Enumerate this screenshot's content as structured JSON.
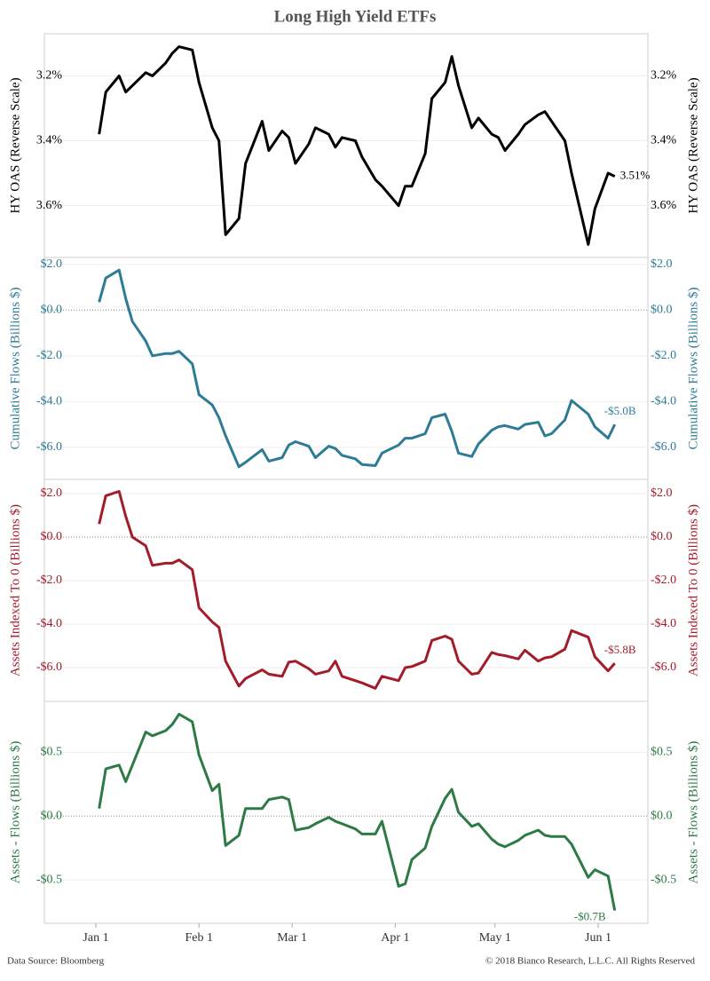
{
  "title": "Long High Yield ETFs",
  "footer": {
    "source": "Data Source: Bloomberg",
    "copyright": "© 2018 Bianco Research, L.L.C. All Rights Reserved"
  },
  "chart_data": [
    {
      "type": "line",
      "ylabel": "HY OAS (Reverse Scale)",
      "color": "#000000",
      "reverse": true,
      "grid": true,
      "ylim": [
        3.07,
        3.76
      ],
      "yticks": [
        {
          "value": 3.2,
          "label": "3.2%"
        },
        {
          "value": 3.4,
          "label": "3.4%"
        },
        {
          "value": 3.6,
          "label": "3.6%"
        }
      ],
      "end_label": "3.51%",
      "x": [
        "Jan 2",
        "Jan 4",
        "Jan 8",
        "Jan 10",
        "Jan 12",
        "Jan 16",
        "Jan 18",
        "Jan 22",
        "Jan 24",
        "Jan 26",
        "Jan 30",
        "Feb 1",
        "Feb 5",
        "Feb 7",
        "Feb 9",
        "Feb 13",
        "Feb 15",
        "Feb 20",
        "Feb 22",
        "Feb 26",
        "Feb 28",
        "Mar 2",
        "Mar 6",
        "Mar 8",
        "Mar 12",
        "Mar 14",
        "Mar 16",
        "Mar 20",
        "Mar 22",
        "Mar 26",
        "Mar 28",
        "Apr 2",
        "Apr 4",
        "Apr 6",
        "Apr 10",
        "Apr 12",
        "Apr 16",
        "Apr 18",
        "Apr 20",
        "Apr 24",
        "Apr 26",
        "Apr 30",
        "May 2",
        "May 4",
        "May 8",
        "May 10",
        "May 14",
        "May 16",
        "May 18",
        "May 22",
        "May 24",
        "May 29",
        "May 31",
        "Jun 4",
        "Jun 6"
      ],
      "values": [
        3.38,
        3.25,
        3.2,
        3.25,
        3.23,
        3.19,
        3.2,
        3.16,
        3.13,
        3.11,
        3.12,
        3.22,
        3.36,
        3.4,
        3.69,
        3.64,
        3.47,
        3.34,
        3.43,
        3.37,
        3.39,
        3.47,
        3.41,
        3.36,
        3.38,
        3.42,
        3.39,
        3.4,
        3.45,
        3.52,
        3.54,
        3.6,
        3.54,
        3.54,
        3.44,
        3.27,
        3.22,
        3.14,
        3.23,
        3.36,
        3.33,
        3.38,
        3.39,
        3.43,
        3.38,
        3.35,
        3.32,
        3.31,
        3.34,
        3.4,
        3.5,
        3.72,
        3.61,
        3.5,
        3.51
      ]
    },
    {
      "type": "line",
      "ylabel": "Cumulative Flows (Billions $)",
      "color": "#2e7b96",
      "grid": true,
      "ylim": [
        -7.4,
        2.3
      ],
      "yticks": [
        {
          "value": 2,
          "label": "$2.0"
        },
        {
          "value": 0,
          "label": "$0.0"
        },
        {
          "value": -2,
          "label": "-$2.0"
        },
        {
          "value": -4,
          "label": "-$4.0"
        },
        {
          "value": -6,
          "label": "-$6.0"
        }
      ],
      "end_label": "-$5.0B",
      "x": [
        "Jan 2",
        "Jan 4",
        "Jan 8",
        "Jan 10",
        "Jan 12",
        "Jan 16",
        "Jan 18",
        "Jan 22",
        "Jan 24",
        "Jan 26",
        "Jan 30",
        "Feb 1",
        "Feb 5",
        "Feb 7",
        "Feb 9",
        "Feb 13",
        "Feb 15",
        "Feb 20",
        "Feb 22",
        "Feb 26",
        "Feb 28",
        "Mar 2",
        "Mar 6",
        "Mar 8",
        "Mar 12",
        "Mar 14",
        "Mar 16",
        "Mar 20",
        "Mar 22",
        "Mar 26",
        "Mar 28",
        "Apr 2",
        "Apr 4",
        "Apr 6",
        "Apr 10",
        "Apr 12",
        "Apr 16",
        "Apr 18",
        "Apr 20",
        "Apr 24",
        "Apr 26",
        "Apr 30",
        "May 2",
        "May 4",
        "May 8",
        "May 10",
        "May 14",
        "May 16",
        "May 18",
        "May 22",
        "May 24",
        "May 29",
        "May 31",
        "Jun 4",
        "Jun 6"
      ],
      "values": [
        0.35,
        1.4,
        1.75,
        0.5,
        -0.5,
        -1.35,
        -2.0,
        -1.9,
        -1.9,
        -1.8,
        -2.35,
        -3.7,
        -4.15,
        -4.7,
        -5.5,
        -6.85,
        -6.65,
        -6.1,
        -6.6,
        -6.45,
        -5.9,
        -5.75,
        -5.95,
        -6.45,
        -5.95,
        -6.05,
        -6.35,
        -6.5,
        -6.75,
        -6.8,
        -6.25,
        -5.9,
        -5.6,
        -5.6,
        -5.4,
        -4.7,
        -4.55,
        -5.3,
        -6.25,
        -6.4,
        -5.85,
        -5.25,
        -5.1,
        -5.05,
        -5.2,
        -5.0,
        -4.9,
        -5.5,
        -5.4,
        -4.8,
        -3.95,
        -4.55,
        -5.1,
        -5.6,
        -5.0
      ]
    },
    {
      "type": "line",
      "ylabel": "Assets Indexed To 0 (Billions $)",
      "color": "#a31c2a",
      "grid": true,
      "ylim": [
        -7.55,
        2.65
      ],
      "yticks": [
        {
          "value": 2,
          "label": "$2.0"
        },
        {
          "value": 0,
          "label": "$0.0"
        },
        {
          "value": -2,
          "label": "-$2.0"
        },
        {
          "value": -4,
          "label": "-$4.0"
        },
        {
          "value": -6,
          "label": "-$6.0"
        }
      ],
      "end_label": "-$5.8B",
      "x": [
        "Jan 2",
        "Jan 4",
        "Jan 8",
        "Jan 10",
        "Jan 12",
        "Jan 16",
        "Jan 18",
        "Jan 22",
        "Jan 24",
        "Jan 26",
        "Jan 30",
        "Feb 1",
        "Feb 5",
        "Feb 7",
        "Feb 9",
        "Feb 13",
        "Feb 15",
        "Feb 20",
        "Feb 22",
        "Feb 26",
        "Feb 28",
        "Mar 2",
        "Mar 6",
        "Mar 8",
        "Mar 12",
        "Mar 14",
        "Mar 16",
        "Mar 20",
        "Mar 22",
        "Mar 26",
        "Mar 28",
        "Apr 2",
        "Apr 4",
        "Apr 6",
        "Apr 10",
        "Apr 12",
        "Apr 16",
        "Apr 18",
        "Apr 20",
        "Apr 24",
        "Apr 26",
        "Apr 30",
        "May 2",
        "May 4",
        "May 8",
        "May 10",
        "May 14",
        "May 16",
        "May 18",
        "May 22",
        "May 24",
        "May 29",
        "May 31",
        "Jun 4",
        "Jun 6"
      ],
      "values": [
        0.6,
        1.9,
        2.1,
        0.95,
        0.0,
        -0.4,
        -1.3,
        -1.2,
        -1.2,
        -1.05,
        -1.5,
        -3.25,
        -3.9,
        -4.15,
        -5.7,
        -6.85,
        -6.5,
        -6.1,
        -6.3,
        -6.4,
        -5.75,
        -5.7,
        -6.05,
        -6.3,
        -6.15,
        -5.7,
        -6.4,
        -6.6,
        -6.7,
        -6.95,
        -6.4,
        -6.6,
        -6.0,
        -5.95,
        -5.7,
        -4.75,
        -4.55,
        -4.7,
        -5.7,
        -6.3,
        -6.25,
        -5.3,
        -5.4,
        -5.45,
        -5.6,
        -5.2,
        -5.7,
        -5.55,
        -5.5,
        -5.15,
        -4.3,
        -4.6,
        -5.5,
        -6.15,
        -5.8
      ]
    },
    {
      "type": "line",
      "ylabel": "Assets - Flows (Billions $)",
      "color": "#2d7a45",
      "grid": true,
      "ylim": [
        -0.84,
        0.9
      ],
      "yticks": [
        {
          "value": 0.5,
          "label": "$0.5"
        },
        {
          "value": 0,
          "label": "$0.0"
        },
        {
          "value": -0.5,
          "label": "-$0.5"
        }
      ],
      "end_label": "-$0.7B",
      "xticks": [
        "Jan 1",
        "Feb 1",
        "Mar 1",
        "Apr 1",
        "May 1",
        "Jun 1"
      ],
      "x": [
        "Jan 2",
        "Jan 4",
        "Jan 8",
        "Jan 10",
        "Jan 12",
        "Jan 16",
        "Jan 18",
        "Jan 22",
        "Jan 24",
        "Jan 26",
        "Jan 30",
        "Feb 1",
        "Feb 5",
        "Feb 7",
        "Feb 9",
        "Feb 13",
        "Feb 15",
        "Feb 20",
        "Feb 22",
        "Feb 26",
        "Feb 28",
        "Mar 2",
        "Mar 6",
        "Mar 8",
        "Mar 12",
        "Mar 14",
        "Mar 16",
        "Mar 20",
        "Mar 22",
        "Mar 26",
        "Mar 28",
        "Apr 2",
        "Apr 4",
        "Apr 6",
        "Apr 10",
        "Apr 12",
        "Apr 16",
        "Apr 18",
        "Apr 20",
        "Apr 24",
        "Apr 26",
        "Apr 30",
        "May 2",
        "May 4",
        "May 8",
        "May 10",
        "May 14",
        "May 16",
        "May 18",
        "May 22",
        "May 24",
        "May 29",
        "May 31",
        "Jun 4",
        "Jun 6"
      ],
      "values": [
        0.06,
        0.37,
        0.4,
        0.27,
        0.4,
        0.66,
        0.63,
        0.67,
        0.72,
        0.8,
        0.74,
        0.48,
        0.2,
        0.25,
        -0.23,
        -0.15,
        0.06,
        0.06,
        0.13,
        0.15,
        0.13,
        -0.11,
        -0.09,
        -0.06,
        -0.01,
        -0.04,
        -0.06,
        -0.1,
        -0.14,
        -0.14,
        -0.04,
        -0.55,
        -0.53,
        -0.34,
        -0.25,
        -0.08,
        0.14,
        0.21,
        0.03,
        -0.08,
        -0.06,
        -0.18,
        -0.22,
        -0.24,
        -0.19,
        -0.15,
        -0.11,
        -0.15,
        -0.16,
        -0.16,
        -0.22,
        -0.48,
        -0.42,
        -0.47,
        -0.74
      ]
    }
  ]
}
